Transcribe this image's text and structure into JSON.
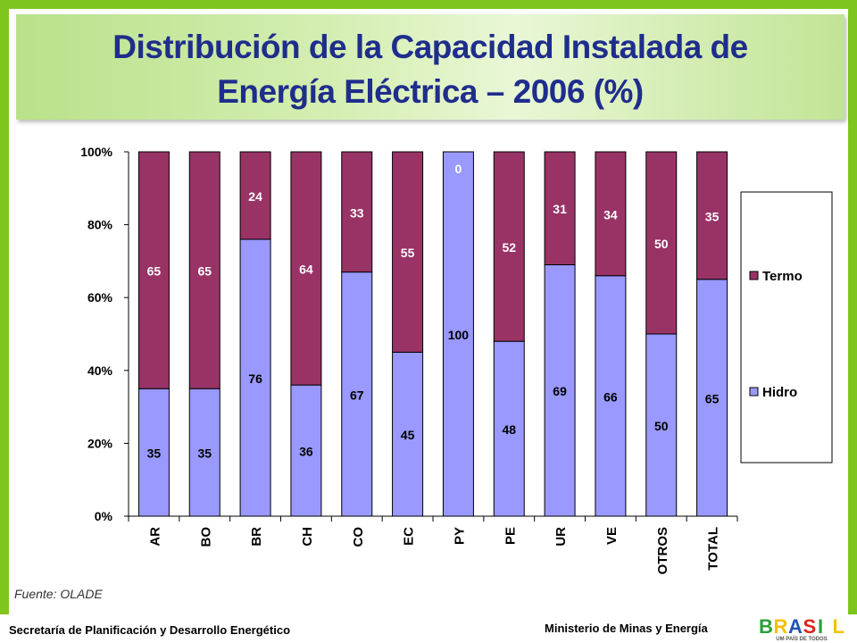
{
  "header": {
    "title_line1": "Distribución de la Capacidad Instalada de",
    "title_line2": "Energía Eléctrica – 2006 (%)"
  },
  "source": "Fuente: OLADE",
  "footer": {
    "left": "Secretaría de Planificación y Desarrollo Energético",
    "right": "Ministerio de Minas y Energía",
    "logo_text": "BRASIL",
    "logo_subtext": "UM PAÍS DE TODOS"
  },
  "colors": {
    "hidro": "#9999ff",
    "termo": "#993366",
    "frame": "#7ec61e",
    "title": "#1f2d8c"
  },
  "chart_data": {
    "type": "bar",
    "stacked": true,
    "percent": true,
    "title": "Distribución de la Capacidad Instalada de Energía Eléctrica – 2006 (%)",
    "categories": [
      "AR",
      "BO",
      "BR",
      "CH",
      "CO",
      "EC",
      "PY",
      "PE",
      "UR",
      "VE",
      "OTROS",
      "TOTAL"
    ],
    "series": [
      {
        "name": "Hidro",
        "values": [
          35,
          35,
          76,
          36,
          67,
          45,
          100,
          48,
          69,
          66,
          50,
          65
        ]
      },
      {
        "name": "Termo",
        "values": [
          65,
          65,
          24,
          64,
          33,
          55,
          0,
          52,
          31,
          34,
          50,
          35
        ]
      }
    ],
    "yticks": [
      "0%",
      "20%",
      "40%",
      "60%",
      "80%",
      "100%"
    ],
    "ylim": [
      0,
      100
    ],
    "legend": [
      "Termo",
      "Hidro"
    ],
    "legend_position": "right",
    "grid": false
  }
}
